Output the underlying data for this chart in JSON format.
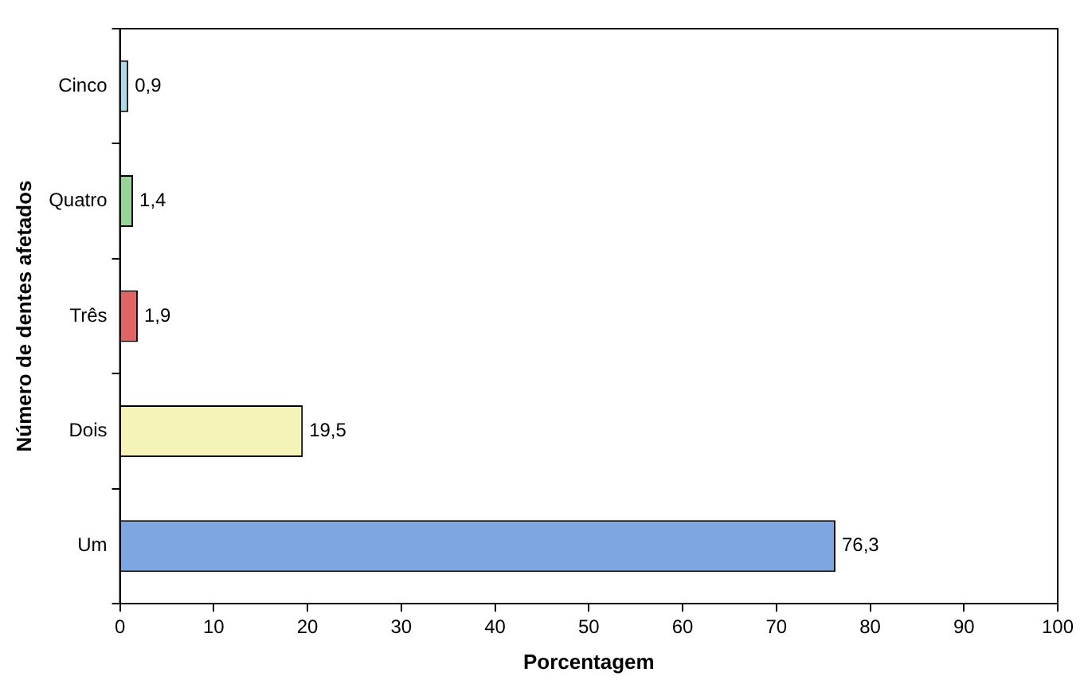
{
  "chart_data": {
    "type": "bar",
    "orientation": "horizontal",
    "xlabel": "Porcentagem",
    "ylabel": "Número de dentes afetados",
    "categories": [
      "Cinco",
      "Quatro",
      "Três",
      "Dois",
      "Um"
    ],
    "values": [
      0.9,
      1.4,
      1.9,
      19.5,
      76.3
    ],
    "colors": [
      "#a8dcec",
      "#98d498",
      "#e06464",
      "#f4f4b8",
      "#7ea6e0"
    ],
    "value_labels": [
      "0,9",
      "1,4",
      "1,9",
      "19,5",
      "76,3"
    ],
    "xlim": [
      0,
      100
    ],
    "xticks": [
      0,
      10,
      20,
      30,
      40,
      50,
      60,
      70,
      80,
      90,
      100
    ],
    "grid": false,
    "legend": false
  }
}
